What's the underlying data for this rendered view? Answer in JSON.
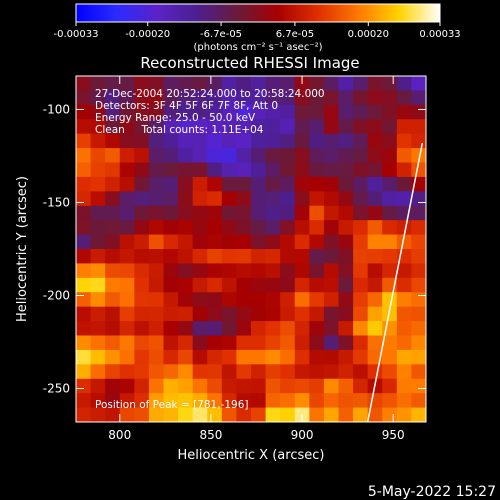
{
  "colorbar": {
    "tick_labels": [
      "-0.00033",
      "-0.00020",
      "-6.7e-05",
      "6.7e-05",
      "0.00020",
      "0.00033"
    ],
    "tick_values": [
      -0.00033,
      -0.0002,
      -6.7e-05,
      6.7e-05,
      0.0002,
      0.00033
    ],
    "range": [
      -0.00033,
      0.00033
    ],
    "unit_label": "(photons cm⁻² s⁻¹ asec⁻²)",
    "colors": [
      "#0000ff",
      "#2b2bff",
      "#5b22c8",
      "#4c1f8f",
      "#6a1a3a",
      "#a80000",
      "#e03000",
      "#ff7a00",
      "#ffd400",
      "#ffffff"
    ]
  },
  "chart_data": {
    "type": "heatmap",
    "title": "Reconstructed RHESSI Image",
    "xlabel": "Heliocentric X (arcsec)",
    "ylabel": "Heliocentric Y (arcsec)",
    "xlim": [
      776,
      968
    ],
    "ylim": [
      -268,
      -82
    ],
    "xticks": [
      800,
      850,
      900,
      950
    ],
    "yticks": [
      -250,
      -200,
      -150,
      -100
    ],
    "xtick_labels": [
      "800",
      "850",
      "900",
      "950"
    ],
    "ytick_labels": [
      "-250",
      "-200",
      "-150",
      "-100"
    ],
    "limb_line": [
      [
        936,
        -268
      ],
      [
        966,
        -118
      ]
    ],
    "peak_position": [
      781,
      -196
    ],
    "info_lines": [
      "27-Dec-2004 20:52:24.000 to 20:58:24.000",
      "Detectors: 3F 4F 5F 6F 7F 8F, Att 0",
      "Energy Range: 25.0 - 50.0 keV",
      "Clean     Total counts: 1.11E+04"
    ],
    "peak_label": "Position of Peak = [781,-196]"
  },
  "footer": {
    "date_stamp": "5-May-2022 15:27"
  }
}
